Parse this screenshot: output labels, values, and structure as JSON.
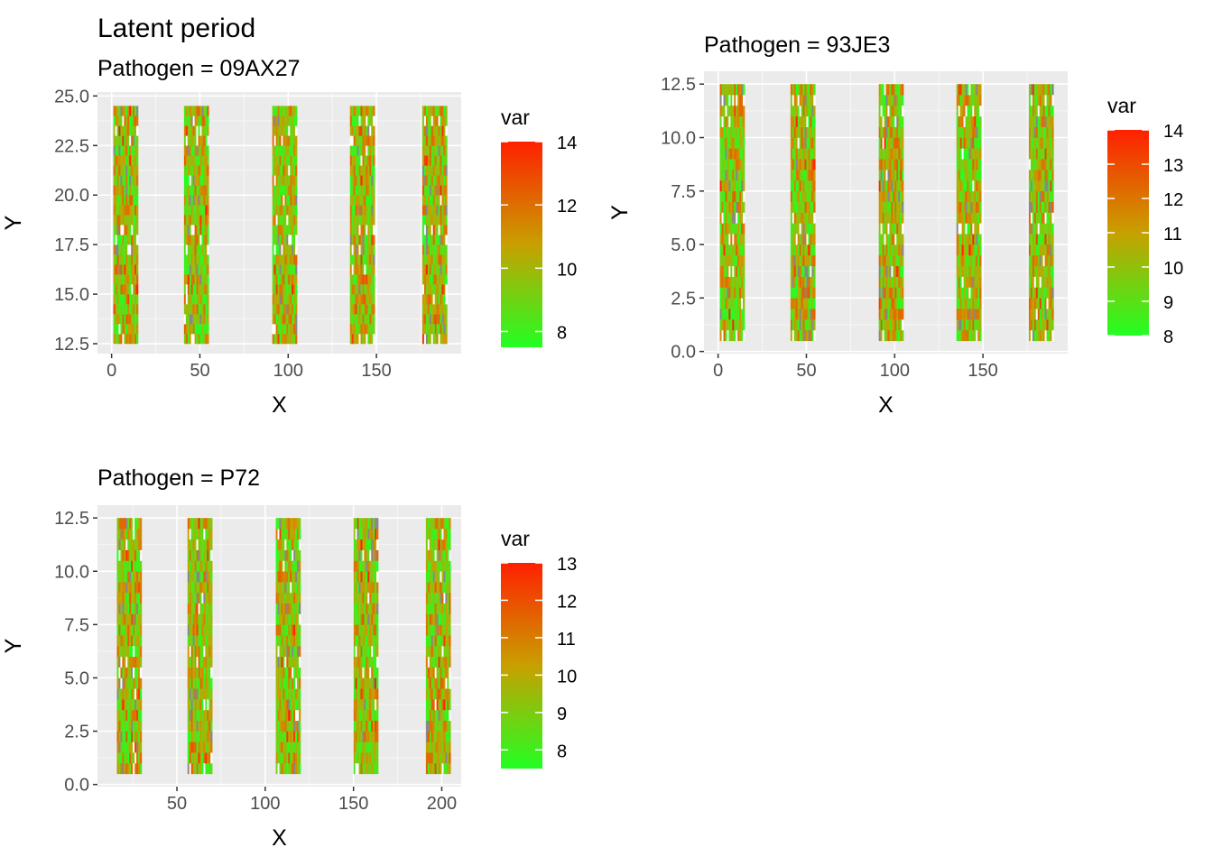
{
  "title": "Latent period",
  "panels": [
    {
      "subtitle": "Pathogen = 09AX27",
      "chart_data": {
        "type": "heatmap",
        "xlabel": "X",
        "ylabel": "Y",
        "xlim": [
          -8,
          198
        ],
        "ylim": [
          12,
          25.2
        ],
        "xticks": [
          0,
          50,
          100,
          150
        ],
        "yticks": [
          12.5,
          15.0,
          17.5,
          20.0,
          22.5,
          25.0
        ],
        "ytick_labels": [
          "12.5",
          "15.0",
          "17.5",
          "20.0",
          "22.5",
          "25.0"
        ],
        "blocks": [
          {
            "x_start": 1,
            "x_end": 15
          },
          {
            "x_start": 41,
            "x_end": 55
          },
          {
            "x_start": 91,
            "x_end": 105
          },
          {
            "x_start": 135,
            "x_end": 149
          },
          {
            "x_start": 176,
            "x_end": 190
          }
        ],
        "y_range": [
          12.5,
          24.5
        ],
        "value_range": [
          7.5,
          14
        ],
        "legend": {
          "title": "var",
          "ticks": [
            8,
            10,
            12,
            14
          ],
          "min": 7.5,
          "max": 14,
          "placement": "right"
        },
        "colors": {
          "low": "#22ff22",
          "mid": "#c8a000",
          "high": "#ff2000",
          "missing": "#888888"
        }
      }
    },
    {
      "subtitle": "Pathogen = 93JE3",
      "chart_data": {
        "type": "heatmap",
        "xlabel": "X",
        "ylabel": "Y",
        "xlim": [
          -8,
          198
        ],
        "ylim": [
          -0.1,
          13.1
        ],
        "xticks": [
          0,
          50,
          100,
          150
        ],
        "yticks": [
          0.0,
          2.5,
          5.0,
          7.5,
          10.0,
          12.5
        ],
        "ytick_labels": [
          "0.0",
          "2.5",
          "5.0",
          "7.5",
          "10.0",
          "12.5"
        ],
        "blocks": [
          {
            "x_start": 1,
            "x_end": 15
          },
          {
            "x_start": 41,
            "x_end": 55
          },
          {
            "x_start": 91,
            "x_end": 105
          },
          {
            "x_start": 135,
            "x_end": 149
          },
          {
            "x_start": 176,
            "x_end": 190
          }
        ],
        "y_range": [
          0.5,
          12.5
        ],
        "value_range": [
          8,
          14
        ],
        "legend": {
          "title": "var",
          "ticks": [
            8,
            9,
            10,
            11,
            12,
            13,
            14
          ],
          "min": 8,
          "max": 14,
          "placement": "right"
        },
        "colors": {
          "low": "#22ff22",
          "mid": "#c8a000",
          "high": "#ff2000",
          "missing": "#888888"
        }
      }
    },
    {
      "subtitle": "Pathogen = P72",
      "chart_data": {
        "type": "heatmap",
        "xlabel": "X",
        "ylabel": "Y",
        "xlim": [
          5,
          211
        ],
        "ylim": [
          -0.1,
          13.1
        ],
        "xticks": [
          50,
          100,
          150,
          200
        ],
        "yticks": [
          0.0,
          2.5,
          5.0,
          7.5,
          10.0,
          12.5
        ],
        "ytick_labels": [
          "0.0",
          "2.5",
          "5.0",
          "7.5",
          "10.0",
          "12.5"
        ],
        "blocks": [
          {
            "x_start": 16,
            "x_end": 30
          },
          {
            "x_start": 56,
            "x_end": 70
          },
          {
            "x_start": 106,
            "x_end": 120
          },
          {
            "x_start": 150,
            "x_end": 164
          },
          {
            "x_start": 191,
            "x_end": 205
          }
        ],
        "y_range": [
          0.5,
          12.5
        ],
        "value_range": [
          7.5,
          13
        ],
        "legend": {
          "title": "var",
          "ticks": [
            8,
            9,
            10,
            11,
            12,
            13
          ],
          "min": 7.5,
          "max": 13,
          "placement": "right"
        },
        "colors": {
          "low": "#22ff22",
          "mid": "#c8a000",
          "high": "#ff2000",
          "missing": "#888888"
        }
      }
    }
  ]
}
